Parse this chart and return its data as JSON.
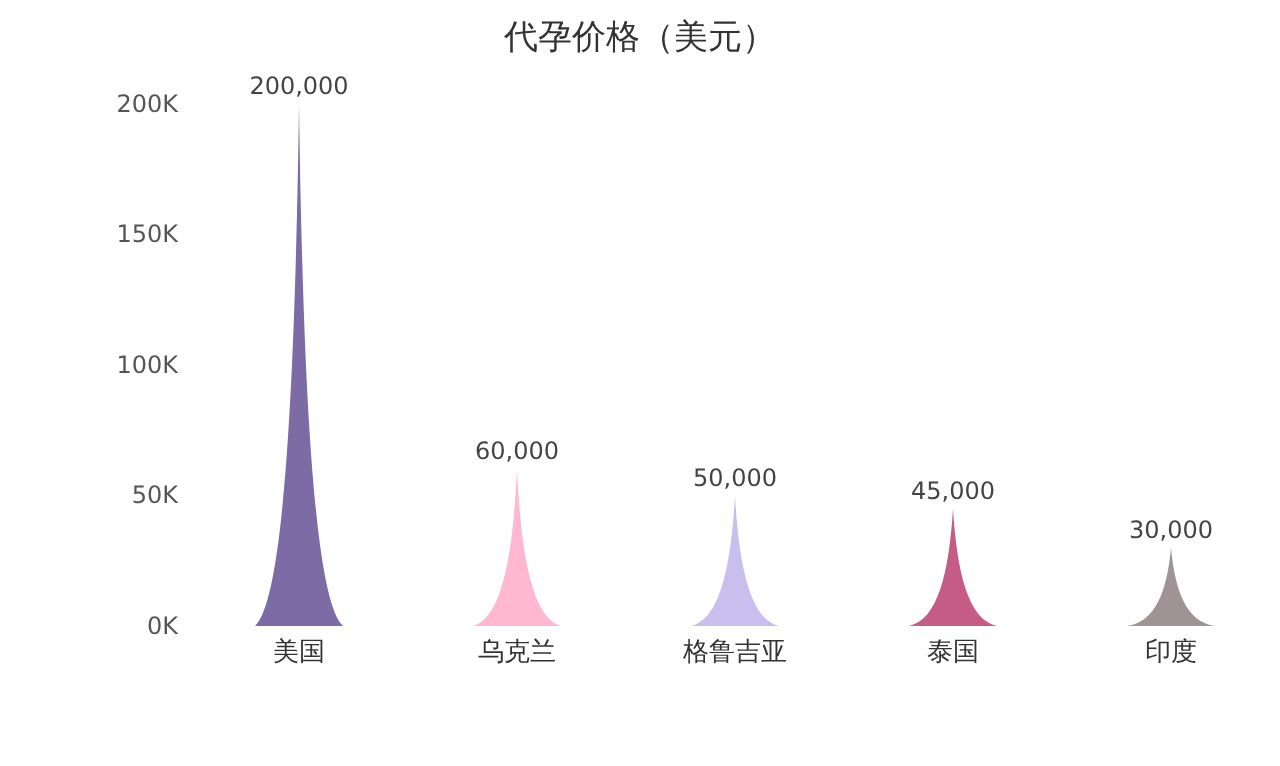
{
  "chart_data": {
    "type": "bar",
    "title": "代孕价格（美元）",
    "categories": [
      "美国",
      "乌克兰",
      "格鲁吉亚",
      "泰国",
      "印度"
    ],
    "values": [
      200000,
      60000,
      50000,
      45000,
      30000
    ],
    "colors": [
      "#7d6ba6",
      "#ffb8d0",
      "#c8bfef",
      "#c45c85",
      "#a09393"
    ],
    "value_labels": [
      "200,000",
      "60,000",
      "50,000",
      "45,000",
      "30,000"
    ],
    "ylim": [
      0,
      200000
    ],
    "yticks": [
      {
        "value": 0,
        "label": "0K"
      },
      {
        "value": 50000,
        "label": "50K"
      },
      {
        "value": 100000,
        "label": "100K"
      },
      {
        "value": 150000,
        "label": "150K"
      },
      {
        "value": 200000,
        "label": "200K"
      }
    ],
    "grid": false
  }
}
